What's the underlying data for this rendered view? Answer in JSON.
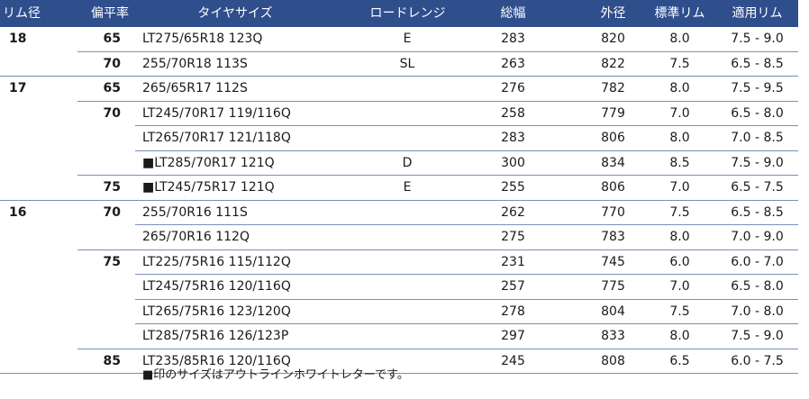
{
  "headers": [
    "リム径",
    "偏平率",
    "タイヤサイズ",
    "ロードレンジ",
    "総幅",
    "外径",
    "標準リム",
    "適用リム"
  ],
  "rows": [
    {
      "rim": "18",
      "aspect": "65",
      "size": "LT275/65R18 123Q",
      "lr": "E",
      "width": "283",
      "od": "820",
      "std": "8.0",
      "app": "7.5 - 9.0"
    },
    {
      "rim": "",
      "aspect": "70",
      "size": "255/70R18 113S",
      "lr": "SL",
      "width": "263",
      "od": "822",
      "std": "7.5",
      "app": "6.5 - 8.5"
    },
    {
      "rim": "17",
      "aspect": "65",
      "size": "265/65R17 112S",
      "lr": "",
      "width": "276",
      "od": "782",
      "std": "8.0",
      "app": "7.5 - 9.5"
    },
    {
      "rim": "",
      "aspect": "70",
      "size": "LT245/70R17 119/116Q",
      "lr": "",
      "width": "258",
      "od": "779",
      "std": "7.0",
      "app": "6.5 - 8.0"
    },
    {
      "rim": "",
      "aspect": "",
      "size": "LT265/70R17 121/118Q",
      "lr": "",
      "width": "283",
      "od": "806",
      "std": "8.0",
      "app": "7.0 - 8.5"
    },
    {
      "rim": "",
      "aspect": "",
      "size": "■LT285/70R17 121Q",
      "lr": "D",
      "width": "300",
      "od": "834",
      "std": "8.5",
      "app": "7.5 - 9.0"
    },
    {
      "rim": "",
      "aspect": "75",
      "size": "■LT245/75R17 121Q",
      "lr": "E",
      "width": "255",
      "od": "806",
      "std": "7.0",
      "app": "6.5 - 7.5"
    },
    {
      "rim": "16",
      "aspect": "70",
      "size": "255/70R16 111S",
      "lr": "",
      "width": "262",
      "od": "770",
      "std": "7.5",
      "app": "6.5 - 8.5"
    },
    {
      "rim": "",
      "aspect": "",
      "size": "265/70R16 112Q",
      "lr": "",
      "width": "275",
      "od": "783",
      "std": "8.0",
      "app": "7.0 - 9.0"
    },
    {
      "rim": "",
      "aspect": "75",
      "size": "LT225/75R16 115/112Q",
      "lr": "",
      "width": "231",
      "od": "745",
      "std": "6.0",
      "app": "6.0 - 7.0"
    },
    {
      "rim": "",
      "aspect": "",
      "size": "LT245/75R16 120/116Q",
      "lr": "",
      "width": "257",
      "od": "775",
      "std": "7.0",
      "app": "6.5 - 8.0"
    },
    {
      "rim": "",
      "aspect": "",
      "size": "LT265/75R16 123/120Q",
      "lr": "",
      "width": "278",
      "od": "804",
      "std": "7.5",
      "app": "7.0 - 8.0"
    },
    {
      "rim": "",
      "aspect": "",
      "size": "LT285/75R16 126/123P",
      "lr": "",
      "width": "297",
      "od": "833",
      "std": "8.0",
      "app": "7.5 - 9.0"
    },
    {
      "rim": "",
      "aspect": "85",
      "size": "LT235/85R16 120/116Q",
      "lr": "",
      "width": "245",
      "od": "808",
      "std": "6.5",
      "app": "6.0 - 7.5"
    }
  ],
  "note": "■印のサイズはアウトラインホワイトレターです。",
  "colors": {
    "header_bg": "#2f4e8c",
    "header_text": "#ffffff",
    "rule": "#7a8fb8"
  }
}
